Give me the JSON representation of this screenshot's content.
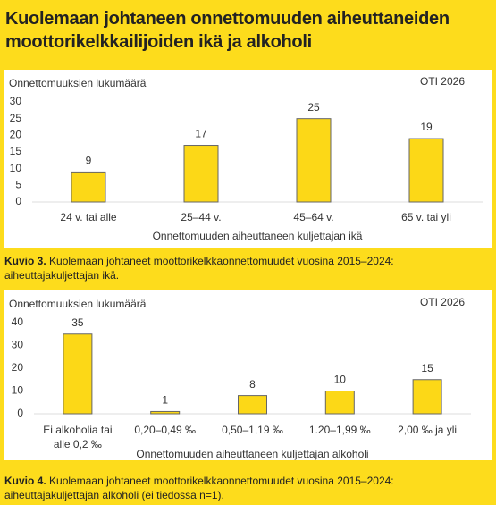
{
  "header": {
    "title": "Kuolemaan johtaneen onnettomuuden aiheuttaneiden moottorikelkkailijoiden ikä ja alkoholi"
  },
  "chart_data": [
    {
      "type": "bar",
      "ylabel": "Onnettomuuksien lukumäärä",
      "source": "OTI 2026",
      "xlabel": "Onnettomuuden aiheuttaneen kuljettajan ikä",
      "categories": [
        "24 v. tai alle",
        "25–44 v.",
        "45–64 v.",
        "65 v. tai yli"
      ],
      "values": [
        9,
        17,
        25,
        19
      ],
      "color": "#fcd817",
      "ylim": [
        0,
        30
      ],
      "yticks": [
        0,
        5,
        10,
        15,
        20,
        25,
        30
      ],
      "caption_label": "Kuvio 3.",
      "caption": "Kuolemaan johtaneet moottorikelkkaonnettomuudet vuosina 2015–2024: aiheuttajakuljettajan ikä."
    },
    {
      "type": "bar",
      "ylabel": "Onnettomuuksien lukumäärä",
      "source": "OTI 2026",
      "xlabel": "Onnettomuuden aiheuttaneen kuljettajan alkoholi",
      "categories": [
        "Ei alkoholia tai alle 0,2 ‰",
        "0,20–0,49 ‰",
        "0,50–1,19 ‰",
        "1.20–1,99 ‰",
        "2,00 ‰ ja yli"
      ],
      "values": [
        35,
        1,
        8,
        10,
        15
      ],
      "color": "#fcd817",
      "ylim": [
        0,
        40
      ],
      "yticks": [
        0,
        10,
        20,
        30,
        40
      ],
      "caption_label": "Kuvio 4.",
      "caption": "Kuolemaan johtaneet moottorikelkkaonnettomuudet vuosina 2015–2024: aiheuttajakuljettajan alkoholi (ei tiedossa n=1)."
    }
  ]
}
